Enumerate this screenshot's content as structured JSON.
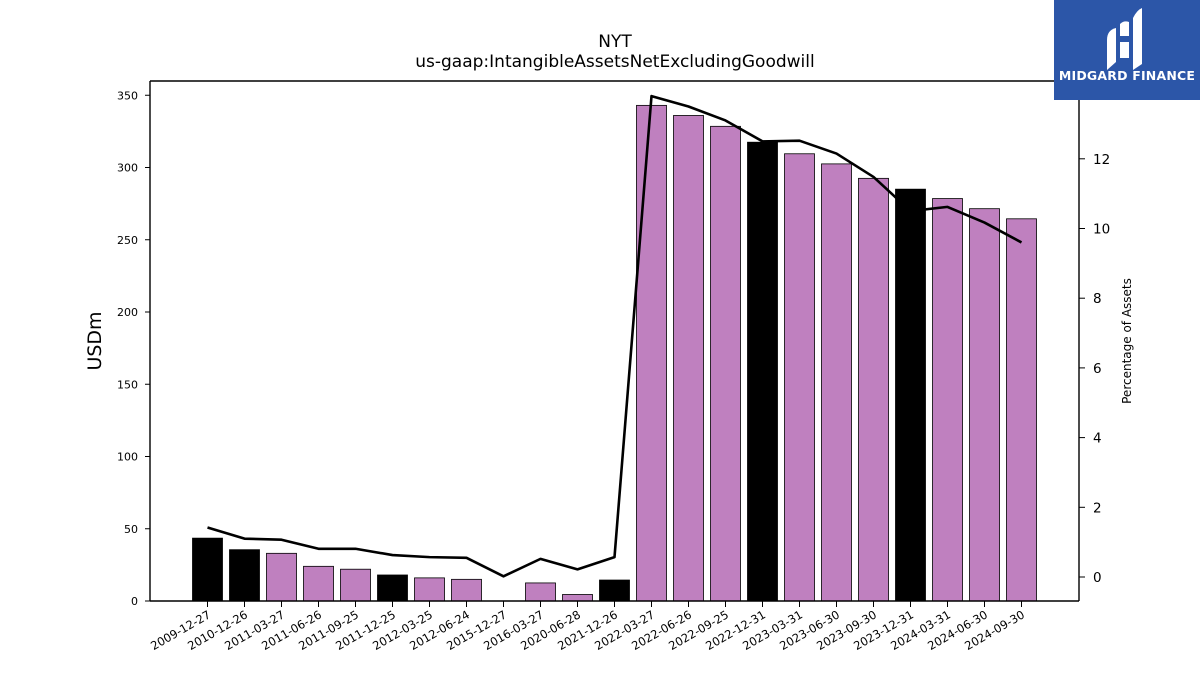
{
  "chart_data": {
    "type": "bar",
    "title": "NYT",
    "subtitle": "us-gaap:IntangibleAssetsNetExcludingGoodwill",
    "ylabel": "USDm",
    "y2label": "Percentage of Assets",
    "ylim": [
      0,
      360
    ],
    "y2lim": [
      -0.7,
      14.3
    ],
    "yticks": [
      0,
      50,
      100,
      150,
      200,
      250,
      300,
      350
    ],
    "y2ticks": [
      0,
      2,
      4,
      6,
      8,
      10,
      12
    ],
    "categories": [
      "2009-12-27",
      "2010-12-26",
      "2011-03-27",
      "2011-06-26",
      "2011-09-25",
      "2011-12-25",
      "2012-03-25",
      "2012-06-24",
      "2015-12-27",
      "2016-03-27",
      "2020-06-28",
      "2021-12-26",
      "2022-03-27",
      "2022-06-26",
      "2022-09-25",
      "2022-12-31",
      "2023-03-31",
      "2023-06-30",
      "2023-09-30",
      "2023-12-31",
      "2024-03-31",
      "2024-06-30",
      "2024-09-30"
    ],
    "series": [
      {
        "type": "bar",
        "values": [
          43.5,
          35.5,
          33,
          24,
          22,
          18,
          16,
          15,
          0,
          12.5,
          4.5,
          14.5,
          343,
          336,
          328.5,
          317.5,
          309.5,
          302.5,
          292.5,
          285,
          278.5,
          271.5,
          264.5
        ],
        "bar_colors": [
          "#000000",
          "#000000",
          "#bf80bf",
          "#bf80bf",
          "#bf80bf",
          "#000000",
          "#bf80bf",
          "#bf80bf",
          "#bf80bf",
          "#bf80bf",
          "#bf80bf",
          "#000000",
          "#bf80bf",
          "#bf80bf",
          "#bf80bf",
          "#000000",
          "#bf80bf",
          "#bf80bf",
          "#bf80bf",
          "#000000",
          "#bf80bf",
          "#bf80bf",
          "#bf80bf"
        ]
      },
      {
        "type": "line",
        "axis": "right",
        "color": "#000000",
        "values": [
          1.42,
          1.1,
          1.07,
          0.81,
          0.81,
          0.63,
          0.57,
          0.55,
          0.02,
          0.52,
          0.22,
          0.57,
          13.8,
          13.5,
          13.1,
          12.5,
          12.52,
          12.15,
          11.48,
          10.5,
          10.62,
          10.17,
          9.6
        ]
      }
    ],
    "grid": false
  },
  "logo": {
    "text": "MIDGARD FINANCE",
    "background": "#2c56a8",
    "color": "#ffffff"
  }
}
